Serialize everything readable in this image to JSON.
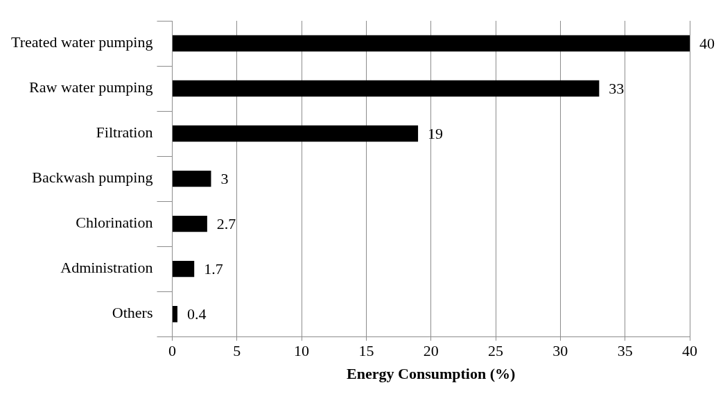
{
  "chart_data": {
    "type": "bar",
    "orientation": "horizontal",
    "xlabel": "Energy Consumption (%)",
    "categories": [
      "Treated water pumping",
      "Raw water pumping",
      "Filtration",
      "Backwash pumping",
      "Chlorination",
      "Administration",
      "Others"
    ],
    "values": [
      40,
      33,
      19,
      3,
      2.7,
      1.7,
      0.4
    ],
    "color": "#000000",
    "xlim": [
      0,
      40
    ],
    "xticks": [
      0,
      5,
      10,
      15,
      20,
      25,
      30,
      35,
      40
    ],
    "grid": "x",
    "data_labels": true,
    "legend": false
  }
}
